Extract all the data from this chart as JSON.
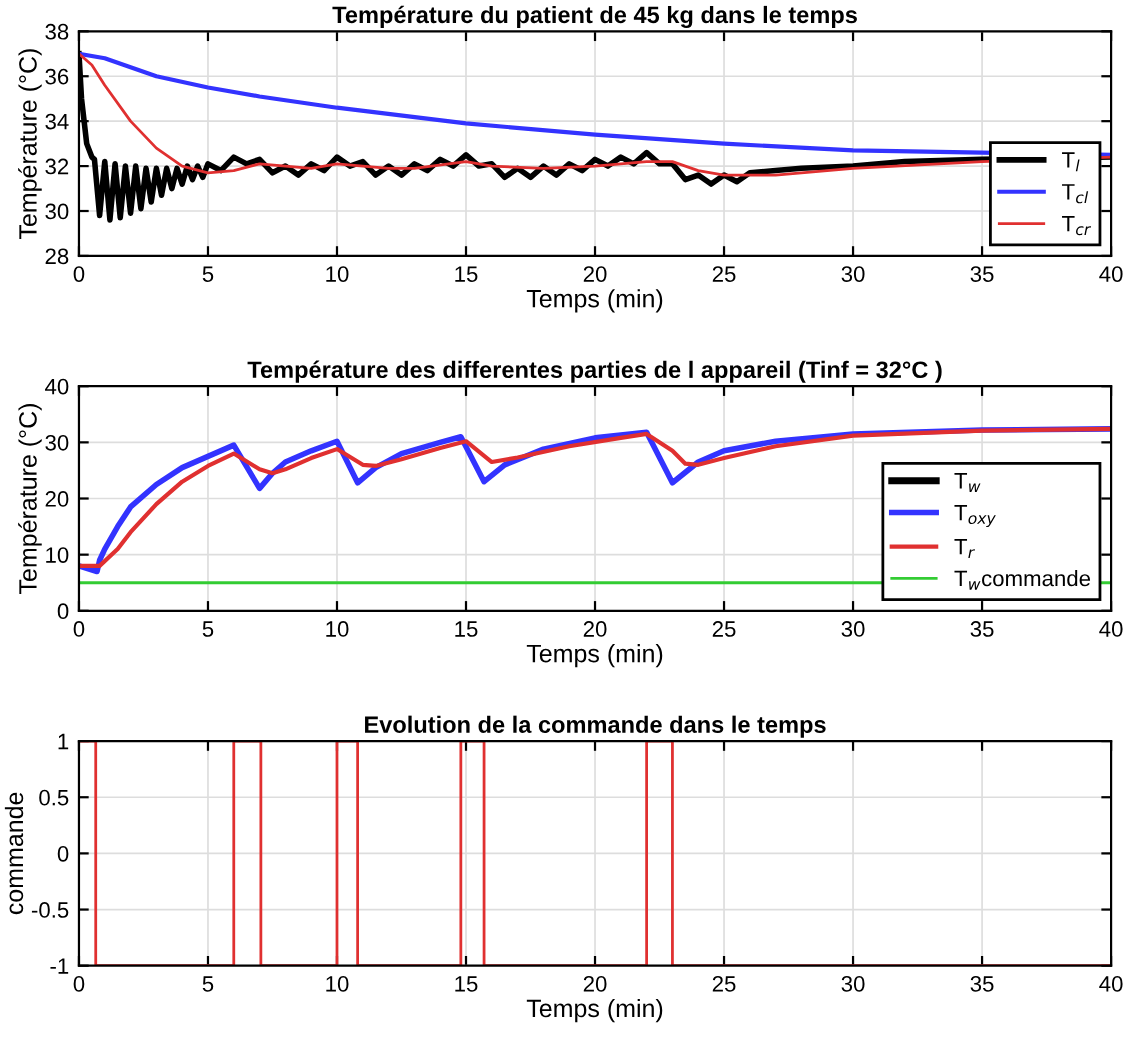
{
  "chart_data": [
    {
      "type": "line",
      "title": "Température du patient de 45 kg dans le temps",
      "xlabel": "Temps (min)",
      "ylabel": "Température (°C)",
      "xlim": [
        0,
        40
      ],
      "xticks": [
        0,
        5,
        10,
        15,
        20,
        25,
        30,
        35,
        40
      ],
      "ylim": [
        28,
        38
      ],
      "yticks": [
        28,
        30,
        32,
        34,
        36,
        38
      ],
      "grid": true,
      "legend": "bottom right",
      "series": [
        {
          "name": "T$_{l}$",
          "color": "#000000",
          "x": [
            0,
            0.1,
            0.3,
            0.5,
            0.6,
            0.8,
            1.0,
            1.2,
            1.4,
            1.6,
            1.8,
            2.0,
            2.2,
            2.4,
            2.6,
            2.8,
            3.0,
            3.2,
            3.4,
            3.6,
            3.8,
            4.0,
            4.2,
            4.4,
            4.6,
            4.8,
            5.0,
            5.5,
            6,
            6.5,
            7,
            7.5,
            8,
            8.5,
            9,
            9.5,
            10,
            10.5,
            11,
            11.5,
            12,
            12.5,
            13,
            13.5,
            14,
            14.5,
            15,
            15.5,
            16,
            16.5,
            17,
            17.5,
            18,
            18.5,
            19,
            19.5,
            20,
            20.5,
            21,
            21.5,
            22,
            22.5,
            23,
            23.5,
            24,
            24.5,
            25,
            25.5,
            26,
            27,
            28,
            30,
            32,
            35,
            40
          ],
          "values": [
            37,
            35,
            33,
            32.4,
            32.3,
            29.8,
            32.2,
            29.6,
            32.1,
            29.7,
            32.0,
            29.9,
            32.0,
            30.1,
            31.9,
            30.4,
            31.9,
            30.7,
            31.9,
            31.0,
            31.9,
            31.2,
            32.0,
            31.4,
            32.0,
            31.5,
            32.1,
            31.8,
            32.4,
            32.1,
            32.3,
            31.7,
            32.0,
            31.6,
            32.1,
            31.8,
            32.4,
            32.0,
            32.2,
            31.6,
            32.0,
            31.6,
            32.1,
            31.8,
            32.3,
            32.0,
            32.5,
            32.0,
            32.1,
            31.5,
            31.9,
            31.5,
            32.0,
            31.6,
            32.1,
            31.8,
            32.3,
            32.0,
            32.4,
            32.1,
            32.6,
            32.1,
            32.1,
            31.4,
            31.6,
            31.2,
            31.6,
            31.3,
            31.7,
            31.8,
            31.9,
            32.0,
            32.2,
            32.3,
            32.4
          ]
        },
        {
          "name": "T$_{cl}$",
          "color": "#3333ff",
          "x": [
            0,
            1,
            2,
            3,
            5,
            7,
            10,
            15,
            20,
            25,
            30,
            35,
            40
          ],
          "values": [
            37,
            36.8,
            36.4,
            36.0,
            35.5,
            35.1,
            34.6,
            33.9,
            33.4,
            33.0,
            32.7,
            32.6,
            32.5
          ]
        },
        {
          "name": "T$_{cr}$",
          "color": "#e03030",
          "x": [
            0,
            0.5,
            1,
            2,
            3,
            4,
            5,
            6,
            7,
            8,
            9,
            10,
            11,
            12,
            13,
            15,
            16,
            18,
            20,
            22,
            23,
            24,
            25,
            27,
            30,
            35,
            40
          ],
          "values": [
            37,
            36.5,
            35.6,
            34.0,
            32.8,
            32.0,
            31.7,
            31.8,
            32.1,
            32.0,
            31.9,
            32.1,
            32.0,
            31.9,
            31.9,
            32.2,
            32.0,
            31.9,
            32.0,
            32.2,
            32.2,
            31.8,
            31.6,
            31.6,
            31.9,
            32.2,
            32.4
          ]
        }
      ]
    },
    {
      "type": "line",
      "title": "Température des differentes parties de l appareil (Tinf = 32°C )",
      "xlabel": "Temps (min)",
      "ylabel": "Température (°C)",
      "xlim": [
        0,
        40
      ],
      "xticks": [
        0,
        5,
        10,
        15,
        20,
        25,
        30,
        35,
        40
      ],
      "ylim": [
        0,
        40
      ],
      "yticks": [
        0,
        10,
        20,
        30,
        40
      ],
      "grid": true,
      "legend": "bottom right",
      "series": [
        {
          "name": "T$_{w}$",
          "color": "#000000"
        },
        {
          "name": "T$_{oxy}$",
          "color": "#3333ff",
          "x": [
            0,
            0.7,
            0.8,
            1,
            1.5,
            2,
            3,
            4,
            5,
            6,
            7,
            7.5,
            8,
            9,
            10,
            10.8,
            11.5,
            12.5,
            14,
            14.8,
            15.7,
            16.5,
            18,
            20,
            22,
            23,
            24,
            25,
            27,
            30,
            35,
            40
          ],
          "values": [
            8,
            7,
            9,
            11,
            15,
            18.5,
            22.5,
            25.5,
            27.5,
            29.5,
            21.8,
            24.5,
            26.5,
            28.5,
            30.2,
            22.8,
            25.5,
            28,
            30,
            31,
            23,
            26,
            28.8,
            30.8,
            31.8,
            22.8,
            26.5,
            28.5,
            30.2,
            31.5,
            32.2,
            32.4
          ]
        },
        {
          "name": "T$_{r}$",
          "color": "#e03030",
          "x": [
            0,
            0.8,
            1.5,
            2,
            3,
            4,
            5,
            6,
            7,
            7.5,
            8,
            9,
            10,
            11,
            11.5,
            12.5,
            14,
            15,
            16,
            17,
            19,
            21,
            22,
            23,
            23.5,
            24,
            25,
            27,
            30,
            35,
            40
          ],
          "values": [
            8,
            8,
            11,
            14,
            19,
            23,
            25.8,
            28,
            25.2,
            24.5,
            25.2,
            27.2,
            28.8,
            26,
            25.8,
            27,
            29,
            30.2,
            26.5,
            27.3,
            29.3,
            30.8,
            31.5,
            28.5,
            26.2,
            26,
            27.2,
            29.3,
            31.2,
            32.1,
            32.4
          ]
        },
        {
          "name": "T$_{w}$commande",
          "color": "#33cc33",
          "x": [
            0,
            40
          ],
          "values": [
            5,
            5
          ]
        }
      ]
    },
    {
      "type": "step",
      "title": "Evolution de la commande dans le temps",
      "xlabel": "Temps (min)",
      "ylabel": "commande",
      "xlim": [
        0,
        40
      ],
      "xticks": [
        0,
        5,
        10,
        15,
        20,
        25,
        30,
        35,
        40
      ],
      "ylim": [
        -1,
        1
      ],
      "yticks": [
        -1,
        -0.5,
        0,
        0.5,
        1
      ],
      "grid": true,
      "series": [
        {
          "color": "#e03030",
          "x": [
            0,
            0.65,
            6,
            7.05,
            10,
            10.8,
            14.8,
            15.7,
            22,
            23,
            40
          ],
          "values": [
            1,
            -1,
            1,
            -1,
            1,
            -1,
            1,
            -1,
            1,
            -1,
            -1
          ]
        }
      ]
    }
  ]
}
